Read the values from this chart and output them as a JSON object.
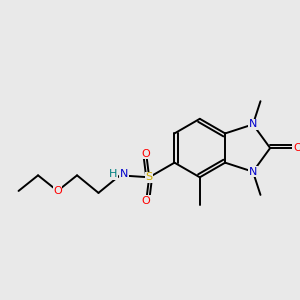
{
  "bg_color": "#e9e9e9",
  "bond_color": "#000000",
  "atom_colors": {
    "O": "#ff0000",
    "N": "#0000cc",
    "S": "#ccaa00",
    "H": "#008080",
    "C": "#000000"
  },
  "figsize": [
    3.0,
    3.0
  ],
  "dpi": 100,
  "bond_lw": 1.4,
  "font_size": 8.0
}
